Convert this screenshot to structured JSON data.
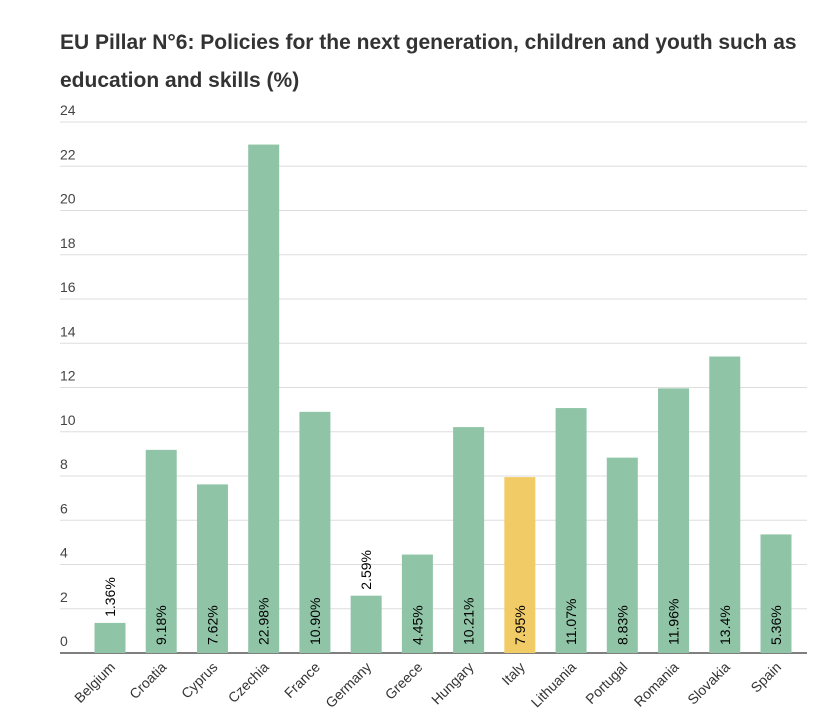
{
  "chart_data": {
    "type": "bar",
    "title": "EU Pillar N°6: Policies for the next generation, children and youth such as education and skills (%)",
    "categories": [
      "Belgium",
      "Croatia",
      "Cyprus",
      "Czechia",
      "France",
      "Germany",
      "Greece",
      "Hungary",
      "Italy",
      "Lithuania",
      "Portugal",
      "Romania",
      "Slovakia",
      "Spain"
    ],
    "values": [
      1.36,
      9.18,
      7.62,
      22.98,
      10.9,
      2.59,
      4.45,
      10.21,
      7.95,
      11.07,
      8.83,
      11.96,
      13.4,
      5.36
    ],
    "data_labels": [
      "1.36%",
      "9.18%",
      "7.62%",
      "22.98%",
      "10.90%",
      "2.59%",
      "4.45%",
      "10.21%",
      "7.95%",
      "11.07%",
      "8.83%",
      "11.96%",
      "13.4%",
      "5.36%"
    ],
    "yticks": [
      0,
      2,
      4,
      6,
      8,
      10,
      12,
      14,
      16,
      18,
      20,
      22,
      24
    ],
    "ylim": [
      0,
      24
    ],
    "grid": true,
    "bar_color": "#8fc4a7",
    "highlight_category": "Italy",
    "highlight_color": "#f0cb66"
  }
}
